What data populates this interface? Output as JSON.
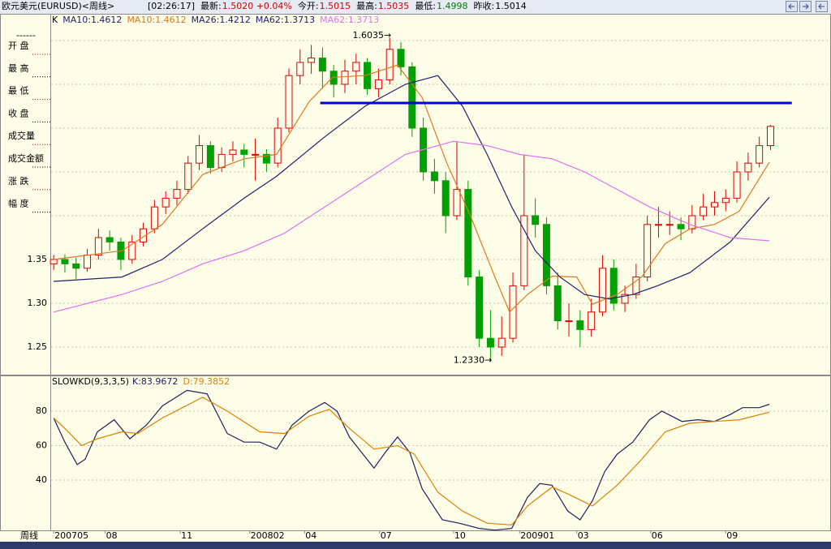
{
  "header": {
    "symbol": "欧元美元(EURUSD)<周线>",
    "fields": [
      {
        "text": "[02:26:17]",
        "color": "#000000"
      },
      {
        "text": "最新:",
        "color": "#000000"
      },
      {
        "text": "1.5020 +0.04%",
        "color": "#d00000"
      },
      {
        "text": "今开:",
        "color": "#000000"
      },
      {
        "text": "1.5015",
        "color": "#d00000"
      },
      {
        "text": "最高:",
        "color": "#000000"
      },
      {
        "text": "1.5035",
        "color": "#d00000"
      },
      {
        "text": "最低:",
        "color": "#000000"
      },
      {
        "text": "1.4998",
        "color": "#008000"
      },
      {
        "text": "昨收:",
        "color": "#000000"
      },
      {
        "text": "1.5014",
        "color": "#000000"
      }
    ]
  },
  "left_panel": {
    "dashes": "------",
    "labels": [
      "开 盘",
      "最 高",
      "最 低",
      "收 盘",
      "成交量",
      "成交金额",
      "涨 跌",
      "幅 度"
    ]
  },
  "chart_data": [
    {
      "type": "candlestick",
      "x_axis_label": "周线",
      "xlim": [
        -0.3,
        69.4
      ],
      "ylim": [
        1.2185,
        1.6296
      ],
      "yticks": [
        1.25,
        {
          "value": 1.3,
          "label": "1.30"
        },
        1.35
      ],
      "ygrid": [
        1.4,
        1.45,
        1.5,
        1.55,
        1.6
      ],
      "xticks": [
        {
          "value": 0,
          "label": "200705"
        },
        {
          "value": 4.6,
          "label": "08"
        },
        {
          "value": 11.3,
          "label": "11"
        },
        {
          "value": 17.5,
          "label": "200802"
        },
        {
          "value": 22.4,
          "label": "04"
        },
        {
          "value": 29.1,
          "label": "07"
        },
        {
          "value": 35.7,
          "label": "10"
        },
        {
          "value": 41.6,
          "label": "200901"
        },
        {
          "value": 46.7,
          "label": "03"
        },
        {
          "value": 53.3,
          "label": "06"
        },
        {
          "value": 60.0,
          "label": "09"
        }
      ],
      "legend": [
        {
          "text": "K",
          "color": "#000000"
        },
        {
          "text": "MA10:1.4612",
          "color": "#202070"
        },
        {
          "text": "MA10:1.4612",
          "color": "#e07820"
        },
        {
          "text": "MA26:1.4212",
          "color": "#202070"
        },
        {
          "text": "MA62:1.3713",
          "color": "#202070"
        },
        {
          "text": "MA62:1.3713",
          "color": "#e070f0"
        }
      ],
      "up_color": "#e00000",
      "down_color": "#00a000",
      "open": [
        1.345,
        1.35,
        1.345,
        1.34,
        1.355,
        1.375,
        1.37,
        1.35,
        1.37,
        1.385,
        1.41,
        1.42,
        1.43,
        1.46,
        1.48,
        1.455,
        1.47,
        1.475,
        1.47,
        1.47,
        1.46,
        1.5,
        1.56,
        1.575,
        1.58,
        1.565,
        1.55,
        1.565,
        1.575,
        1.545,
        1.555,
        1.59,
        1.57,
        1.5,
        1.45,
        1.44,
        1.4,
        1.43,
        1.33,
        1.26,
        1.25,
        1.26,
        1.32,
        1.4,
        1.39,
        1.32,
        1.28,
        1.28,
        1.27,
        1.29,
        1.34,
        1.3,
        1.31,
        1.33,
        1.39,
        1.39,
        1.39,
        1.385,
        1.4,
        1.41,
        1.415,
        1.42,
        1.45,
        1.46,
        1.48
      ],
      "high": [
        1.355,
        1.356,
        1.352,
        1.362,
        1.385,
        1.383,
        1.375,
        1.378,
        1.392,
        1.418,
        1.428,
        1.44,
        1.468,
        1.492,
        1.485,
        1.478,
        1.485,
        1.482,
        1.488,
        1.476,
        1.512,
        1.568,
        1.59,
        1.595,
        1.592,
        1.572,
        1.578,
        1.585,
        1.58,
        1.568,
        1.6035,
        1.598,
        1.575,
        1.512,
        1.465,
        1.45,
        1.485,
        1.44,
        1.338,
        1.292,
        1.285,
        1.335,
        1.47,
        1.42,
        1.398,
        1.335,
        1.3,
        1.292,
        1.305,
        1.355,
        1.35,
        1.32,
        1.345,
        1.4,
        1.41,
        1.405,
        1.398,
        1.412,
        1.425,
        1.428,
        1.43,
        1.462,
        1.472,
        1.49,
        1.5035
      ],
      "low": [
        1.338,
        1.335,
        1.328,
        1.336,
        1.35,
        1.36,
        1.338,
        1.345,
        1.365,
        1.38,
        1.402,
        1.412,
        1.425,
        1.452,
        1.448,
        1.45,
        1.462,
        1.455,
        1.44,
        1.45,
        1.455,
        1.495,
        1.55,
        1.562,
        1.545,
        1.535,
        1.54,
        1.55,
        1.538,
        1.535,
        1.55,
        1.56,
        1.49,
        1.44,
        1.425,
        1.38,
        1.395,
        1.32,
        1.25,
        1.233,
        1.24,
        1.255,
        1.315,
        1.375,
        1.31,
        1.27,
        1.262,
        1.25,
        1.262,
        1.285,
        1.292,
        1.29,
        1.305,
        1.325,
        1.375,
        1.378,
        1.372,
        1.38,
        1.395,
        1.4,
        1.405,
        1.415,
        1.44,
        1.455,
        1.475
      ],
      "close": [
        1.35,
        1.345,
        1.34,
        1.355,
        1.375,
        1.37,
        1.35,
        1.37,
        1.385,
        1.41,
        1.42,
        1.43,
        1.46,
        1.48,
        1.455,
        1.47,
        1.475,
        1.47,
        1.47,
        1.46,
        1.5,
        1.56,
        1.575,
        1.58,
        1.565,
        1.55,
        1.565,
        1.575,
        1.545,
        1.555,
        1.59,
        1.57,
        1.5,
        1.45,
        1.44,
        1.4,
        1.43,
        1.33,
        1.26,
        1.25,
        1.26,
        1.32,
        1.4,
        1.39,
        1.32,
        1.28,
        1.28,
        1.27,
        1.29,
        1.34,
        1.3,
        1.31,
        1.33,
        1.39,
        1.39,
        1.39,
        1.385,
        1.4,
        1.41,
        1.415,
        1.42,
        1.45,
        1.46,
        1.48,
        1.502
      ],
      "series": [
        {
          "color": "#e07820",
          "x": [
            0,
            6.1,
            9.7,
            13.3,
            17,
            19.9,
            22.8,
            24.9,
            27.8,
            30.7,
            32.9,
            35.1,
            37.2,
            39.4,
            40.7,
            42.3,
            44.5,
            46.7,
            48.1,
            50.3,
            52.5,
            54.6,
            56.8,
            59,
            61.2,
            63.9
          ],
          "values": [
            1.35,
            1.36,
            1.39,
            1.447,
            1.465,
            1.47,
            1.53,
            1.558,
            1.56,
            1.572,
            1.535,
            1.46,
            1.4,
            1.33,
            1.29,
            1.31,
            1.331,
            1.33,
            1.299,
            1.31,
            1.33,
            1.368,
            1.385,
            1.39,
            1.405,
            1.4612
          ]
        },
        {
          "color": "#202070",
          "x": [
            0,
            6.1,
            9.7,
            13.3,
            17,
            19.9,
            24.2,
            27.8,
            31.4,
            34.3,
            36.5,
            38.7,
            40.9,
            43,
            45.2,
            47.4,
            49.6,
            51.7,
            53.9,
            56.8,
            60.4,
            63.9
          ],
          "values": [
            1.325,
            1.33,
            1.35,
            1.385,
            1.42,
            1.445,
            1.49,
            1.525,
            1.55,
            1.56,
            1.525,
            1.47,
            1.41,
            1.36,
            1.33,
            1.31,
            1.305,
            1.31,
            1.32,
            1.335,
            1.37,
            1.4212
          ]
        },
        {
          "color": "#e070f0",
          "x": [
            0,
            6.1,
            9.7,
            13.3,
            17,
            20.6,
            24.2,
            27.8,
            31.4,
            34.3,
            35.7,
            38.7,
            41.6,
            44.5,
            47.4,
            50.3,
            53.2,
            56.8,
            60.4,
            63.9
          ],
          "values": [
            1.29,
            1.31,
            1.325,
            1.345,
            1.36,
            1.38,
            1.41,
            1.44,
            1.47,
            1.48,
            1.485,
            1.48,
            1.47,
            1.465,
            1.45,
            1.43,
            1.41,
            1.39,
            1.375,
            1.3713
          ]
        }
      ],
      "annotations": [
        {
          "label": "1.6035→",
          "value": 1.6035,
          "x": 30
        },
        {
          "label": "1.2330→",
          "value": 1.233,
          "x": 39
        }
      ],
      "hline": {
        "value": 1.5287,
        "x": [
          23.8,
          65.9
        ],
        "color": "#0000c8"
      }
    },
    {
      "type": "line",
      "title": "SLOWKD(9,3,3,5)",
      "xlim": [
        -0.3,
        69.4
      ],
      "ylim": [
        10.4,
        100.2
      ],
      "yticks": [
        40,
        60,
        80
      ],
      "series": [
        {
          "name": "K:83.9672",
          "color": "#202060",
          "x": [
            0,
            1,
            2.1,
            2.8,
            3.9,
            5.4,
            6.8,
            8.3,
            9.7,
            11.9,
            13.7,
            15.5,
            17,
            18.4,
            19.9,
            21.3,
            22.8,
            24.2,
            25.3,
            26.4,
            27.5,
            28.6,
            29.6,
            30.7,
            31.8,
            32.9,
            34.7,
            36.2,
            38,
            39.4,
            40.9,
            42.3,
            43.4,
            44.5,
            45.9,
            47,
            48.1,
            49.2,
            50.3,
            51.7,
            53.2,
            54.3,
            56.1,
            57.5,
            59,
            60.4,
            61.5,
            63,
            63.9
          ],
          "values": [
            76,
            62,
            49,
            52,
            68,
            75,
            64,
            72,
            83,
            92,
            90,
            67,
            62,
            62,
            58,
            72,
            80,
            85,
            80,
            65,
            56,
            47,
            56,
            65,
            56,
            35,
            17,
            15,
            12,
            11,
            12,
            30,
            38,
            37,
            22,
            17,
            28,
            45,
            55,
            62,
            75,
            80,
            74,
            75,
            74,
            78,
            82,
            82,
            83.9672
          ]
        },
        {
          "name": "D:79.3852",
          "color": "#e08000",
          "x": [
            0,
            1,
            2.5,
            3.9,
            6.1,
            7.5,
            9.7,
            13.3,
            15.5,
            18.4,
            20.6,
            22.8,
            24.6,
            26.4,
            28.6,
            30.7,
            32.2,
            34.3,
            36.5,
            38.7,
            40.9,
            42.3,
            44.5,
            45.9,
            48.1,
            50.3,
            52.5,
            54.6,
            56.8,
            59,
            61.2,
            63.9
          ],
          "values": [
            76,
            70,
            60,
            64,
            68,
            67,
            76,
            88,
            80,
            68,
            67,
            77,
            81,
            70,
            58,
            60,
            55,
            33,
            22,
            15,
            14,
            25,
            36,
            32,
            25,
            37,
            52,
            68,
            73,
            74,
            75,
            79.3852
          ]
        }
      ]
    }
  ]
}
